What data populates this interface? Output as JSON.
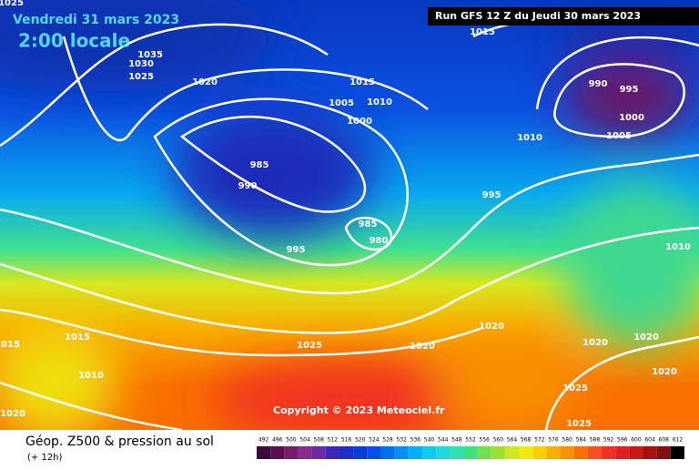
{
  "header": {
    "date": "Vendredi 31 mars 2023",
    "time": "2:00 locale",
    "run": "Run GFS 12 Z du Jeudi 30 mars 2023"
  },
  "isobar_labels": [
    "1025",
    "1035",
    "1030",
    "1025",
    "1020",
    "1015",
    "1015",
    "1010",
    "1005",
    "1000",
    "985",
    "990",
    "1010",
    "990",
    "995",
    "1000",
    "1005",
    "995",
    "985",
    "980",
    "995",
    "1010",
    "1020",
    "1020",
    "1025",
    "1015",
    "1015",
    "1010",
    "1020",
    "1020",
    "1020",
    "1025",
    "1025",
    "1020"
  ],
  "copyright": "Copyright © 2023 Meteociel.fr",
  "footer": {
    "title": "Géop. Z500 & pression au sol",
    "lead": "(+ 12h)"
  },
  "legend": {
    "values": [
      492,
      496,
      500,
      504,
      508,
      512,
      516,
      520,
      524,
      528,
      532,
      536,
      540,
      544,
      548,
      552,
      556,
      560,
      564,
      568,
      572,
      576,
      580,
      584,
      588,
      592,
      596,
      600,
      604,
      608,
      612
    ],
    "colors": [
      "#3a0a3a",
      "#5a1050",
      "#7a1a6a",
      "#8a2a90",
      "#6a2aa8",
      "#3a28b8",
      "#1a30c8",
      "#0a3cd8",
      "#0050e8",
      "#0070f0",
      "#0090f8",
      "#00b0f8",
      "#10c8f0",
      "#20d8d8",
      "#30e0b0",
      "#40e080",
      "#70e050",
      "#a0e030",
      "#d0e820",
      "#f0e810",
      "#f8d000",
      "#f8b000",
      "#f89000",
      "#f87000",
      "#f85020",
      "#f03020",
      "#e02020",
      "#c81818",
      "#a81010",
      "#801010",
      "#000000"
    ]
  }
}
